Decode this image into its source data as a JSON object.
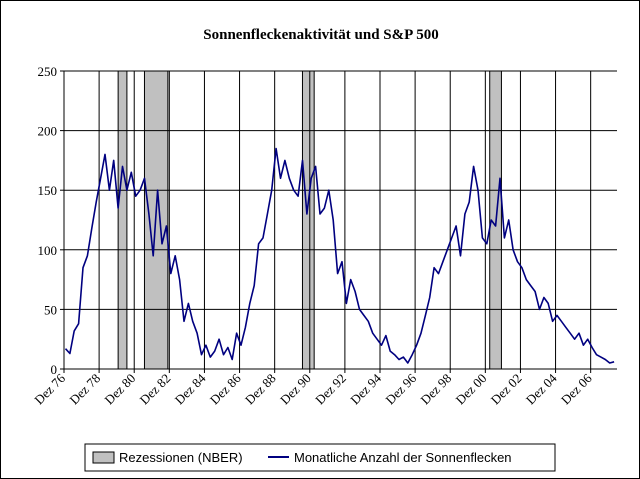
{
  "chart_data": {
    "type": "line",
    "title": "Sonnenfleckenaktivität und S&P 500",
    "xlabel": "",
    "ylabel": "",
    "ylim": [
      0,
      250
    ],
    "y_ticks": [
      0,
      50,
      100,
      150,
      200,
      250
    ],
    "xlim": [
      "1976-12",
      "2008-06"
    ],
    "x_ticks": [
      "Dez 76",
      "Dez 78",
      "Dez 80",
      "Dez 82",
      "Dez 84",
      "Dez 86",
      "Dez 88",
      "Dez 90",
      "Dez 92",
      "Dez 94",
      "Dez 96",
      "Dez 98",
      "Dez 00",
      "Dez 02",
      "Dez 04",
      "Dez 06"
    ],
    "grid": true,
    "legend_position": "bottom",
    "recessions": {
      "name": "Rezessionen (NBER)",
      "color": "#c0c0c0",
      "periods": [
        {
          "start": "1980-01",
          "end": "1980-07"
        },
        {
          "start": "1981-07",
          "end": "1982-11"
        },
        {
          "start": "1990-07",
          "end": "1991-03"
        },
        {
          "start": "2001-03",
          "end": "2001-11"
        }
      ]
    },
    "series": [
      {
        "name": "Monatliche Anzahl der Sonnenflecken",
        "color": "#000080",
        "x": [
          "1977-01",
          "1977-04",
          "1977-07",
          "1977-10",
          "1978-01",
          "1978-04",
          "1978-07",
          "1978-10",
          "1979-01",
          "1979-04",
          "1979-07",
          "1979-10",
          "1980-01",
          "1980-04",
          "1980-07",
          "1980-10",
          "1981-01",
          "1981-04",
          "1981-07",
          "1981-10",
          "1982-01",
          "1982-04",
          "1982-07",
          "1982-10",
          "1983-01",
          "1983-04",
          "1983-07",
          "1983-10",
          "1984-01",
          "1984-04",
          "1984-07",
          "1984-10",
          "1985-01",
          "1985-04",
          "1985-07",
          "1985-10",
          "1986-01",
          "1986-04",
          "1986-07",
          "1986-10",
          "1987-01",
          "1987-04",
          "1987-07",
          "1987-10",
          "1988-01",
          "1988-04",
          "1988-07",
          "1988-10",
          "1989-01",
          "1989-04",
          "1989-07",
          "1989-10",
          "1990-01",
          "1990-04",
          "1990-07",
          "1990-10",
          "1991-01",
          "1991-04",
          "1991-07",
          "1991-10",
          "1992-01",
          "1992-04",
          "1992-07",
          "1992-10",
          "1993-01",
          "1993-04",
          "1993-07",
          "1993-10",
          "1994-01",
          "1994-04",
          "1994-07",
          "1994-10",
          "1995-01",
          "1995-04",
          "1995-07",
          "1995-10",
          "1996-01",
          "1996-04",
          "1996-07",
          "1996-10",
          "1997-01",
          "1997-04",
          "1997-07",
          "1997-10",
          "1998-01",
          "1998-04",
          "1998-07",
          "1998-10",
          "1999-01",
          "1999-04",
          "1999-07",
          "1999-10",
          "2000-01",
          "2000-04",
          "2000-07",
          "2000-10",
          "2001-01",
          "2001-04",
          "2001-07",
          "2001-10",
          "2002-01",
          "2002-04",
          "2002-07",
          "2002-10",
          "2003-01",
          "2003-04",
          "2003-07",
          "2003-10",
          "2004-01",
          "2004-04",
          "2004-07",
          "2004-10",
          "2005-01",
          "2005-04",
          "2005-07",
          "2005-10",
          "2006-01",
          "2006-04",
          "2006-07",
          "2006-10",
          "2007-01",
          "2007-04",
          "2007-07",
          "2007-10",
          "2008-01",
          "2008-04"
        ],
        "values": [
          17,
          13,
          32,
          38,
          85,
          95,
          118,
          140,
          160,
          180,
          150,
          175,
          135,
          170,
          150,
          165,
          145,
          150,
          160,
          130,
          95,
          150,
          105,
          120,
          80,
          95,
          75,
          40,
          55,
          40,
          30,
          12,
          20,
          10,
          15,
          25,
          12,
          18,
          8,
          30,
          20,
          35,
          55,
          70,
          105,
          110,
          130,
          150,
          185,
          160,
          175,
          160,
          150,
          145,
          175,
          130,
          160,
          170,
          130,
          135,
          150,
          125,
          80,
          90,
          55,
          75,
          65,
          50,
          45,
          40,
          30,
          25,
          20,
          28,
          15,
          12,
          8,
          10,
          5,
          12,
          20,
          30,
          45,
          60,
          85,
          80,
          90,
          100,
          110,
          120,
          95,
          130,
          140,
          170,
          150,
          110,
          105,
          125,
          120,
          160,
          110,
          125,
          100,
          90,
          85,
          75,
          70,
          65,
          50,
          60,
          55,
          40,
          45,
          40,
          35,
          30,
          25,
          30,
          20,
          25,
          18,
          12,
          10,
          8,
          5,
          6
        ]
      }
    ]
  }
}
